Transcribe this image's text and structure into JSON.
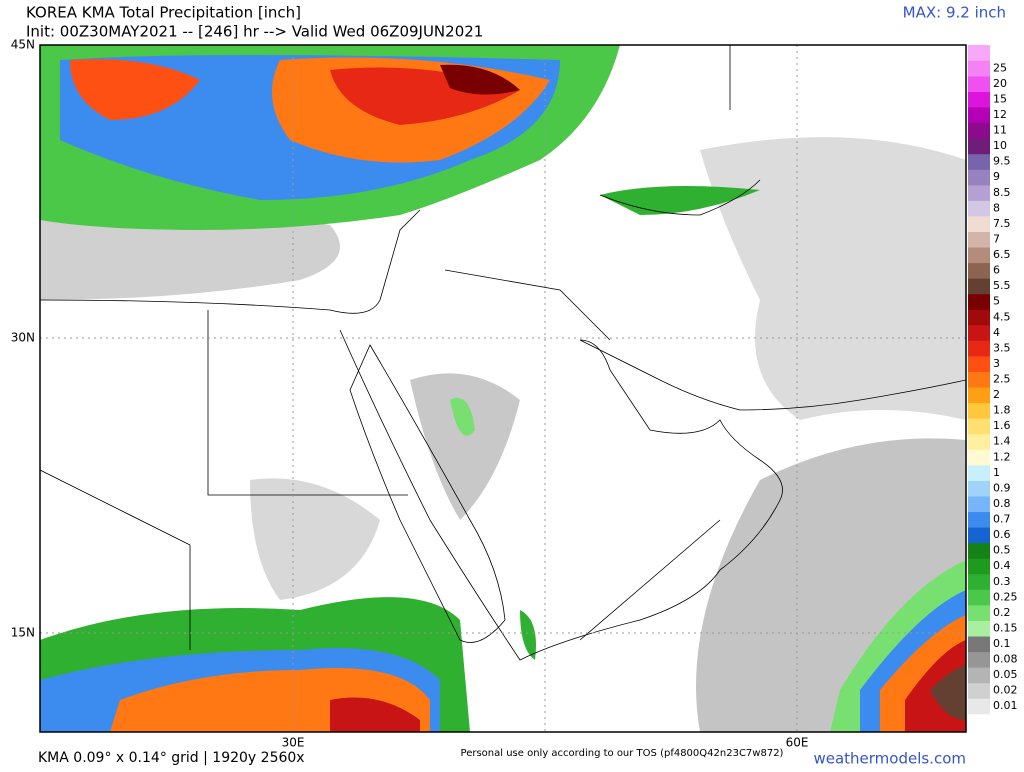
{
  "header": {
    "title": "KOREA KMA Total Precipitation [inch]",
    "subtitle": "Init: 00Z30MAY2021 -- [246] hr --> Valid Wed 06Z09JUN2021",
    "max": "MAX: 9.2 inch"
  },
  "map": {
    "lat_labels": [
      "45N",
      "30N",
      "15N"
    ],
    "lon_labels": [
      "30E",
      "60E"
    ]
  },
  "colorbar": {
    "overflow_color": "#f8a8f8",
    "levels": [
      {
        "label": "0.01",
        "color": "#e8e8e8"
      },
      {
        "label": "0.02",
        "color": "#d0d0d0"
      },
      {
        "label": "0.05",
        "color": "#b4b4b4"
      },
      {
        "label": "0.08",
        "color": "#969696"
      },
      {
        "label": "0.1",
        "color": "#787878"
      },
      {
        "label": "0.15",
        "color": "#a8f0a0"
      },
      {
        "label": "0.2",
        "color": "#78e070"
      },
      {
        "label": "0.25",
        "color": "#4cc848"
      },
      {
        "label": "0.3",
        "color": "#30b030"
      },
      {
        "label": "0.4",
        "color": "#1e9a1e"
      },
      {
        "label": "0.5",
        "color": "#148214"
      },
      {
        "label": "0.6",
        "color": "#1464d2"
      },
      {
        "label": "0.7",
        "color": "#3c8cf0"
      },
      {
        "label": "0.8",
        "color": "#78b4fa"
      },
      {
        "label": "0.9",
        "color": "#a0d2fa"
      },
      {
        "label": "1",
        "color": "#c8f0fa"
      },
      {
        "label": "1.2",
        "color": "#fffad2"
      },
      {
        "label": "1.4",
        "color": "#fff0a0"
      },
      {
        "label": "1.6",
        "color": "#ffe070"
      },
      {
        "label": "1.8",
        "color": "#ffc83c"
      },
      {
        "label": "2",
        "color": "#ffa014"
      },
      {
        "label": "2.5",
        "color": "#ff7814"
      },
      {
        "label": "3",
        "color": "#ff5014"
      },
      {
        "label": "3.5",
        "color": "#e62814"
      },
      {
        "label": "4",
        "color": "#c81414"
      },
      {
        "label": "4.5",
        "color": "#a00a0a"
      },
      {
        "label": "5",
        "color": "#780000"
      },
      {
        "label": "5.5",
        "color": "#644032"
      },
      {
        "label": "6",
        "color": "#8c6450"
      },
      {
        "label": "6.5",
        "color": "#b48c7c"
      },
      {
        "label": "7",
        "color": "#d2b4a8"
      },
      {
        "label": "7.5",
        "color": "#f0dcd2"
      },
      {
        "label": "8",
        "color": "#d2c8e6"
      },
      {
        "label": "8.5",
        "color": "#b4a0d2"
      },
      {
        "label": "9",
        "color": "#9682be"
      },
      {
        "label": "9.5",
        "color": "#7864aa"
      },
      {
        "label": "10",
        "color": "#6e1e78"
      },
      {
        "label": "11",
        "color": "#8c0a8c"
      },
      {
        "label": "12",
        "color": "#b400b4"
      },
      {
        "label": "15",
        "color": "#dc14dc"
      },
      {
        "label": "20",
        "color": "#f050f0"
      },
      {
        "label": "25",
        "color": "#f582f5"
      }
    ]
  },
  "footer": {
    "grid": "KMA 0.09° x 0.14° grid | 1920y 2560x",
    "tos": "Personal use only according to our TOS (pf4800Q42n23C7w872)",
    "site": "weathermodels.com"
  }
}
